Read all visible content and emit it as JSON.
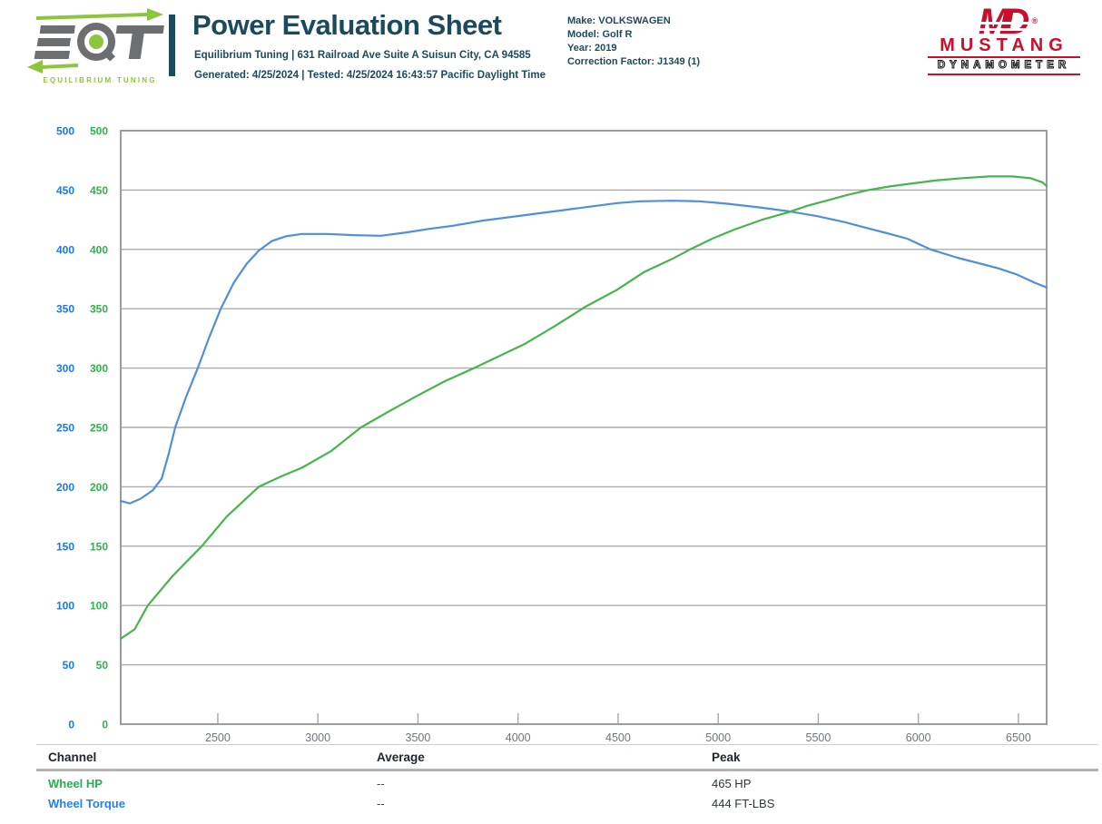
{
  "colors": {
    "teal": "#1b4a5e",
    "eqt_green": "#8cc63e",
    "eqt_gray": "#6d6e71",
    "md_red": "#c8102e",
    "hp_green": "#45b649",
    "torque_blue": "#4f8fdb",
    "axis_label_blue": "#1778f2",
    "axis_label_green": "#2eb34d",
    "grid_gray": "#ababab",
    "border_gray": "#9b9b9b",
    "xtick_label_gray": "#6e767d"
  },
  "header": {
    "eqt_logo": {
      "brand": "EQT",
      "tagline": "EQUILIBRIUM TUNING"
    },
    "title": "Power Evaluation Sheet",
    "address_line": "Equilibrium Tuning | 631 Railroad Ave Suite A Suisun City, CA 94585",
    "generated_line": "Generated: 4/25/2024 | Tested: 4/25/2024 16:43:57 Pacific Daylight Time",
    "vehicle_lines": [
      "Make: VOLKSWAGEN",
      "Model: Golf R",
      "Year: 2019",
      "Correction Factor: J1349 (1)"
    ],
    "md_logo": {
      "monogram": "MD",
      "registered": "®",
      "name": "MUSTANG",
      "tagline": "DYNAMOMETER"
    }
  },
  "chart_data": {
    "type": "line",
    "title": "",
    "xlabel": "",
    "ylabel": "",
    "grid": "horizontal",
    "legend_position": "table-below",
    "x_range": [
      2015,
      6641
    ],
    "x_ticks": [
      2500,
      3000,
      3500,
      4000,
      4500,
      5000,
      5500,
      6000,
      6500
    ],
    "y_range": [
      0,
      500
    ],
    "y_ticks": [
      0,
      50,
      100,
      150,
      200,
      250,
      300,
      350,
      400,
      450,
      500
    ],
    "dual_y_axis": "left columns: blue (torque) and green (hp), identical 0-500 scales",
    "series": [
      {
        "name": "Wheel Torque",
        "unit": "FT-LBS",
        "color": "#4f8fdb",
        "points": [
          [
            2015,
            188
          ],
          [
            2060,
            186
          ],
          [
            2115,
            190
          ],
          [
            2175,
            197
          ],
          [
            2220,
            207
          ],
          [
            2255,
            228
          ],
          [
            2287,
            250
          ],
          [
            2342,
            276
          ],
          [
            2400,
            300
          ],
          [
            2455,
            325
          ],
          [
            2515,
            350
          ],
          [
            2580,
            372
          ],
          [
            2645,
            388
          ],
          [
            2705,
            399
          ],
          [
            2770,
            407
          ],
          [
            2840,
            411
          ],
          [
            2920,
            413
          ],
          [
            3045,
            413
          ],
          [
            3180,
            412
          ],
          [
            3315,
            411.5
          ],
          [
            3430,
            414
          ],
          [
            3545,
            417
          ],
          [
            3680,
            420
          ],
          [
            3815,
            424
          ],
          [
            3950,
            427
          ],
          [
            4085,
            430
          ],
          [
            4225,
            433
          ],
          [
            4360,
            436
          ],
          [
            4495,
            439
          ],
          [
            4610,
            440.5
          ],
          [
            4770,
            441
          ],
          [
            4905,
            440.5
          ],
          [
            5040,
            438.5
          ],
          [
            5200,
            435.5
          ],
          [
            5355,
            432
          ],
          [
            5495,
            428
          ],
          [
            5630,
            423
          ],
          [
            5720,
            419
          ],
          [
            5835,
            414
          ],
          [
            5945,
            409
          ],
          [
            6060,
            400
          ],
          [
            6195,
            393
          ],
          [
            6310,
            388
          ],
          [
            6400,
            384
          ],
          [
            6490,
            379
          ],
          [
            6580,
            372
          ],
          [
            6640,
            368
          ]
        ]
      },
      {
        "name": "Wheel HP",
        "unit": "HP",
        "color": "#45b649",
        "points": [
          [
            2015,
            72
          ],
          [
            2085,
            80
          ],
          [
            2150,
            100
          ],
          [
            2275,
            125
          ],
          [
            2420,
            150
          ],
          [
            2545,
            175
          ],
          [
            2705,
            200
          ],
          [
            2820,
            209
          ],
          [
            2920,
            216
          ],
          [
            3065,
            230
          ],
          [
            3215,
            250
          ],
          [
            3360,
            264
          ],
          [
            3500,
            277
          ],
          [
            3635,
            289
          ],
          [
            3780,
            300
          ],
          [
            3905,
            310
          ],
          [
            4030,
            320
          ],
          [
            4180,
            335
          ],
          [
            4340,
            352
          ],
          [
            4495,
            366
          ],
          [
            4630,
            381
          ],
          [
            4770,
            392
          ],
          [
            4860,
            400
          ],
          [
            4970,
            409
          ],
          [
            5085,
            417
          ],
          [
            5220,
            425
          ],
          [
            5345,
            431
          ],
          [
            5450,
            437
          ],
          [
            5540,
            441
          ],
          [
            5650,
            446
          ],
          [
            5750,
            450
          ],
          [
            5855,
            453
          ],
          [
            5945,
            455
          ],
          [
            6085,
            458
          ],
          [
            6220,
            460
          ],
          [
            6355,
            461.5
          ],
          [
            6470,
            461.5
          ],
          [
            6560,
            460
          ],
          [
            6620,
            456.5
          ],
          [
            6640,
            453.5
          ]
        ]
      }
    ]
  },
  "table": {
    "headers": [
      "Channel",
      "Average",
      "Peak"
    ],
    "rows": [
      {
        "channel": "Wheel HP",
        "color": "#21b24b",
        "average": "--",
        "peak": "465 HP"
      },
      {
        "channel": "Wheel Torque",
        "color": "#1e82f7",
        "average": "--",
        "peak": "444 FT-LBS"
      }
    ]
  }
}
